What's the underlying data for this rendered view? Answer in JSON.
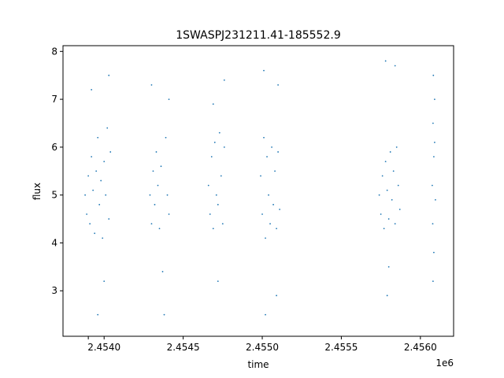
{
  "chart_data": {
    "type": "scatter",
    "title": "1SWASPJ231211.41-185552.9",
    "xlabel": "time",
    "ylabel": "flux",
    "x_offset_label": "1e6",
    "xlim": [
      2453740,
      2456210
    ],
    "ylim": [
      2.05,
      8.12
    ],
    "x_ticks": [
      2453900,
      2454000,
      2454500,
      2455000,
      2455500,
      2456000
    ],
    "x_tick_labels": [
      "",
      "2.4540",
      "2.4545",
      "2.4550",
      "2.4555",
      "2.4560"
    ],
    "y_ticks": [
      3,
      4,
      5,
      6,
      7,
      8
    ],
    "y_tick_labels": [
      "3",
      "4",
      "5",
      "6",
      "7",
      "8"
    ],
    "grid": false,
    "marker_color": "#1f77b4",
    "series": [
      {
        "values": [
          {
            "x": 2453880,
            "y": 5.0
          },
          {
            "x": 2453890,
            "y": 4.6
          },
          {
            "x": 2453900,
            "y": 5.4
          },
          {
            "x": 2453910,
            "y": 4.4
          },
          {
            "x": 2453920,
            "y": 5.8
          },
          {
            "x": 2453930,
            "y": 5.1
          },
          {
            "x": 2453940,
            "y": 4.2
          },
          {
            "x": 2453950,
            "y": 5.5
          },
          {
            "x": 2453960,
            "y": 6.2
          },
          {
            "x": 2453970,
            "y": 4.8
          },
          {
            "x": 2453980,
            "y": 5.3
          },
          {
            "x": 2453990,
            "y": 4.1
          },
          {
            "x": 2454000,
            "y": 5.7
          },
          {
            "x": 2454010,
            "y": 5.0
          },
          {
            "x": 2454020,
            "y": 6.4
          },
          {
            "x": 2454030,
            "y": 4.5
          },
          {
            "x": 2454040,
            "y": 5.9
          },
          {
            "x": 2454030,
            "y": 7.5
          },
          {
            "x": 2453920,
            "y": 7.2
          },
          {
            "x": 2453960,
            "y": 2.5
          },
          {
            "x": 2454000,
            "y": 3.2
          },
          {
            "x": 2454290,
            "y": 5.0
          },
          {
            "x": 2454300,
            "y": 4.4
          },
          {
            "x": 2454310,
            "y": 5.5
          },
          {
            "x": 2454320,
            "y": 4.8
          },
          {
            "x": 2454330,
            "y": 5.9
          },
          {
            "x": 2454340,
            "y": 5.2
          },
          {
            "x": 2454350,
            "y": 4.3
          },
          {
            "x": 2454360,
            "y": 5.6
          },
          {
            "x": 2454370,
            "y": 3.4
          },
          {
            "x": 2454380,
            "y": 2.5
          },
          {
            "x": 2454390,
            "y": 6.2
          },
          {
            "x": 2454400,
            "y": 5.0
          },
          {
            "x": 2454410,
            "y": 4.6
          },
          {
            "x": 2454300,
            "y": 7.3
          },
          {
            "x": 2454410,
            "y": 7.0
          },
          {
            "x": 2454660,
            "y": 5.2
          },
          {
            "x": 2454670,
            "y": 4.6
          },
          {
            "x": 2454680,
            "y": 5.8
          },
          {
            "x": 2454690,
            "y": 4.3
          },
          {
            "x": 2454700,
            "y": 6.1
          },
          {
            "x": 2454710,
            "y": 5.0
          },
          {
            "x": 2454720,
            "y": 4.8
          },
          {
            "x": 2454730,
            "y": 6.3
          },
          {
            "x": 2454740,
            "y": 5.4
          },
          {
            "x": 2454750,
            "y": 4.4
          },
          {
            "x": 2454760,
            "y": 6.0
          },
          {
            "x": 2454720,
            "y": 3.2
          },
          {
            "x": 2454760,
            "y": 7.4
          },
          {
            "x": 2454690,
            "y": 6.9
          },
          {
            "x": 2454990,
            "y": 5.4
          },
          {
            "x": 2455000,
            "y": 4.6
          },
          {
            "x": 2455010,
            "y": 6.2
          },
          {
            "x": 2455020,
            "y": 4.1
          },
          {
            "x": 2455030,
            "y": 5.8
          },
          {
            "x": 2455040,
            "y": 5.0
          },
          {
            "x": 2455050,
            "y": 4.4
          },
          {
            "x": 2455060,
            "y": 6.0
          },
          {
            "x": 2455070,
            "y": 4.8
          },
          {
            "x": 2455080,
            "y": 5.5
          },
          {
            "x": 2455090,
            "y": 4.3
          },
          {
            "x": 2455100,
            "y": 5.9
          },
          {
            "x": 2455110,
            "y": 4.7
          },
          {
            "x": 2455010,
            "y": 7.6
          },
          {
            "x": 2455020,
            "y": 2.5
          },
          {
            "x": 2455100,
            "y": 7.3
          },
          {
            "x": 2455090,
            "y": 2.9
          },
          {
            "x": 2455740,
            "y": 5.0
          },
          {
            "x": 2455750,
            "y": 4.6
          },
          {
            "x": 2455760,
            "y": 5.4
          },
          {
            "x": 2455770,
            "y": 4.3
          },
          {
            "x": 2455780,
            "y": 5.7
          },
          {
            "x": 2455790,
            "y": 5.1
          },
          {
            "x": 2455800,
            "y": 4.5
          },
          {
            "x": 2455810,
            "y": 5.9
          },
          {
            "x": 2455820,
            "y": 4.9
          },
          {
            "x": 2455830,
            "y": 5.5
          },
          {
            "x": 2455840,
            "y": 4.4
          },
          {
            "x": 2455850,
            "y": 6.0
          },
          {
            "x": 2455860,
            "y": 5.2
          },
          {
            "x": 2455870,
            "y": 4.7
          },
          {
            "x": 2455780,
            "y": 7.8
          },
          {
            "x": 2455790,
            "y": 2.9
          },
          {
            "x": 2455840,
            "y": 7.7
          },
          {
            "x": 2455800,
            "y": 3.5
          },
          {
            "x": 2456075,
            "y": 5.2
          },
          {
            "x": 2456080,
            "y": 6.5
          },
          {
            "x": 2456085,
            "y": 5.8
          },
          {
            "x": 2456090,
            "y": 7.0
          },
          {
            "x": 2456095,
            "y": 4.9
          },
          {
            "x": 2456082,
            "y": 7.5
          },
          {
            "x": 2456078,
            "y": 4.4
          },
          {
            "x": 2456090,
            "y": 6.1
          },
          {
            "x": 2456080,
            "y": 3.2
          },
          {
            "x": 2456085,
            "y": 3.8
          }
        ]
      }
    ]
  }
}
